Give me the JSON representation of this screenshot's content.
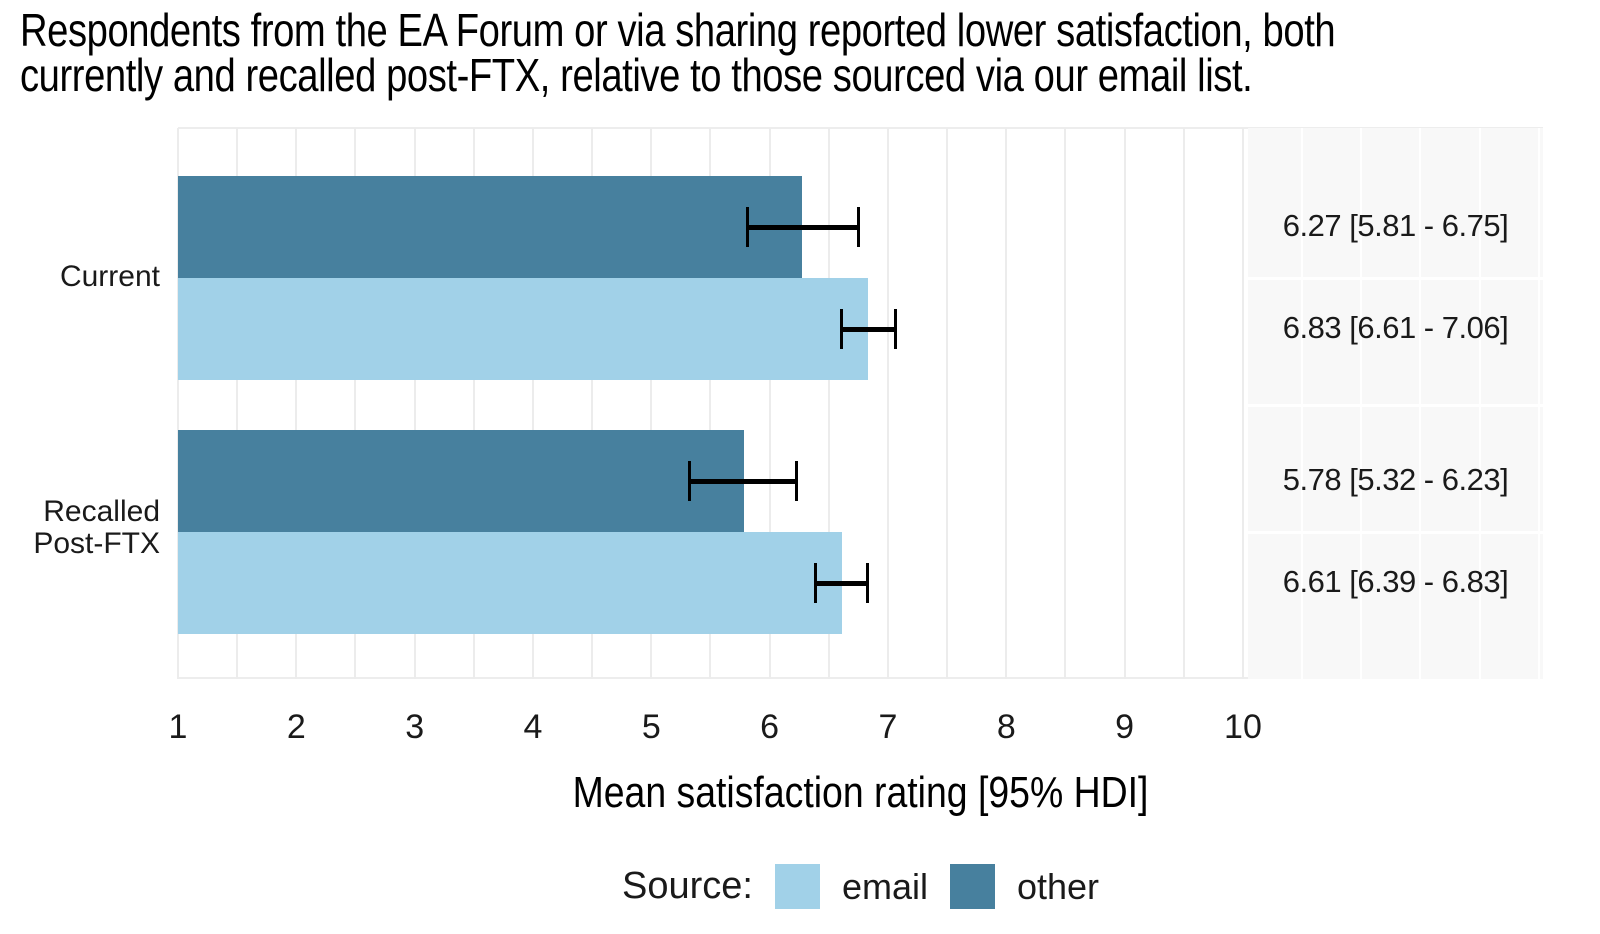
{
  "chart_data": {
    "type": "bar",
    "orientation": "horizontal",
    "title": "Respondents from the EA Forum or via sharing reported lower satisfaction, both currently and recalled post-FTX, relative to those sourced via our email list.",
    "title_lines": [
      "Respondents from the EA Forum or via sharing reported lower satisfaction, both",
      "currently and recalled post-FTX, relative to those sourced via our email list."
    ],
    "xlabel": "Mean satisfaction rating [95% HDI]",
    "xlim": [
      1,
      10
    ],
    "xticks": [
      "1",
      "2",
      "3",
      "4",
      "5",
      "6",
      "7",
      "8",
      "9",
      "10"
    ],
    "grid": {
      "on": true,
      "minor_step": 0.5,
      "color": "#ececec"
    },
    "categories": [
      "Current",
      "Recalled Post-FTX"
    ],
    "category_display": [
      "Current",
      "Recalled\nPost-FTX"
    ],
    "legend": {
      "title": "Source:",
      "position": "bottom",
      "entries": [
        {
          "label": "email",
          "color": "#a1d1e8"
        },
        {
          "label": "other",
          "color": "#47809e"
        }
      ]
    },
    "colors": {
      "email": "#a1d1e8",
      "other": "#47809e",
      "annotation_panel": "#f8f8f8",
      "error_bar": "#000000",
      "gridline": "#ececec"
    },
    "rows": [
      {
        "category": "Current",
        "source": "other",
        "mean": 6.27,
        "hdi_low": 5.81,
        "hdi_high": 6.75,
        "label": "6.27 [5.81 - 6.75]"
      },
      {
        "category": "Current",
        "source": "email",
        "mean": 6.83,
        "hdi_low": 6.61,
        "hdi_high": 7.06,
        "label": "6.83 [6.61 - 7.06]"
      },
      {
        "category": "Recalled Post-FTX",
        "source": "other",
        "mean": 5.78,
        "hdi_low": 5.32,
        "hdi_high": 6.23,
        "label": "5.78 [5.32 - 6.23]"
      },
      {
        "category": "Recalled Post-FTX",
        "source": "email",
        "mean": 6.61,
        "hdi_low": 6.39,
        "hdi_high": 6.83,
        "label": "6.61 [6.39 - 6.83]"
      }
    ]
  }
}
